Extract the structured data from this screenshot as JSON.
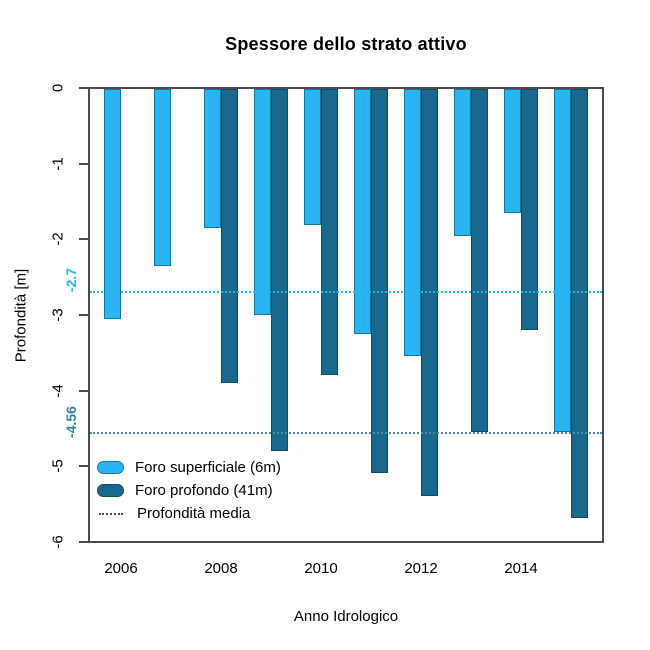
{
  "chart_data": {
    "type": "bar",
    "title": "Spessore dello strato attivo",
    "xlabel": "Anno Idrologico",
    "ylabel": "Profondità [m]",
    "ylim": [
      -6,
      0
    ],
    "grid": false,
    "legend_position": "bottom-left-inside",
    "ytick_labels": [
      "0",
      "-1",
      "-2",
      "-3",
      "-4",
      "-5",
      "-6"
    ],
    "ytick_values": [
      0,
      -1,
      -2,
      -3,
      -4,
      -5,
      -6
    ],
    "xtick_labels": [
      "2006",
      "2008",
      "2010",
      "2012",
      "2014"
    ],
    "categories": [
      2006,
      2007,
      2008,
      2009,
      2010,
      2011,
      2012,
      2013,
      2014,
      2015
    ],
    "series": [
      {
        "name": "Foro superficiale (6m)",
        "color": "#29B5F0",
        "border_color": "#1177A8",
        "values": [
          -3.05,
          -2.35,
          -1.85,
          -3.0,
          -1.8,
          -3.25,
          -3.55,
          -1.95,
          -1.65,
          -4.55
        ]
      },
      {
        "name": "Foro profondo (41m)",
        "color": "#19698E",
        "border_color": "#0E4B68",
        "values": [
          null,
          null,
          -3.9,
          -4.8,
          -3.8,
          -5.1,
          -5.4,
          -4.55,
          -3.2,
          -5.7
        ]
      }
    ],
    "mean_lines": [
      {
        "value": -2.7,
        "label": "-2.7",
        "line_color": "#29B5F0",
        "label_color": "#29B5F0"
      },
      {
        "value": -4.56,
        "label": "-4.56",
        "line_color": "#4D8FA8",
        "label_color": "#2E80A5"
      }
    ],
    "legend": [
      {
        "label": "Foro superficiale (6m)",
        "swatch": "#29B5F0",
        "swatch_border": "#1177A8",
        "type": "fill"
      },
      {
        "label": "Foro profondo (41m)",
        "swatch": "#19698E",
        "swatch_border": "#0E4B68",
        "type": "fill"
      },
      {
        "label": "Profondità media",
        "swatch": "#4b4b4b",
        "type": "dotted"
      }
    ],
    "axis_color": "#4b4b4b"
  }
}
